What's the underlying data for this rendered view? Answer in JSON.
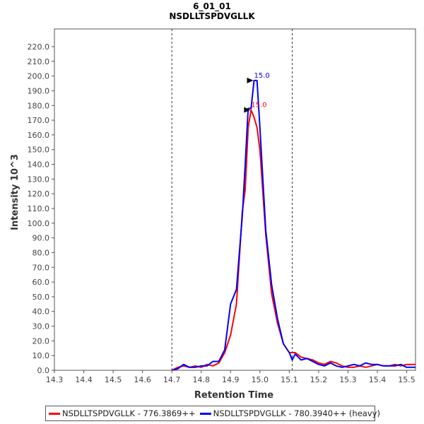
{
  "chart_data": {
    "type": "line",
    "title": "6_01_01",
    "subtitle": "NSDLLTSPDVGLLK",
    "xlabel": "Retention Time",
    "ylabel": "Intensity 10^3",
    "xlim": [
      14.3,
      15.53
    ],
    "ylim": [
      0,
      232
    ],
    "x_ticks": [
      "14.3",
      "14.4",
      "14.5",
      "14.6",
      "14.7",
      "14.8",
      "14.9",
      "15.0",
      "15.1",
      "15.2",
      "15.3",
      "15.4",
      "15.5"
    ],
    "y_ticks": [
      "0.0",
      "10.0",
      "20.0",
      "30.0",
      "40.0",
      "50.0",
      "60.0",
      "70.0",
      "80.0",
      "90.0",
      "100.0",
      "110.0",
      "120.0",
      "130.0",
      "140.0",
      "150.0",
      "160.0",
      "170.0",
      "180.0",
      "190.0",
      "200.0",
      "210.0",
      "220.0"
    ],
    "boundaries": [
      14.7,
      15.11
    ],
    "legend_position": "bottom",
    "series": [
      {
        "name": "NSDLLTSPDVGLLK - 776.3869++",
        "color": "#ff0000",
        "peak_label": "15.0",
        "peak_x": 14.97,
        "peak_y": 177,
        "x": [
          14.7,
          14.72,
          14.74,
          14.76,
          14.78,
          14.8,
          14.82,
          14.84,
          14.86,
          14.88,
          14.9,
          14.92,
          14.94,
          14.95,
          14.96,
          14.97,
          14.98,
          14.99,
          15.0,
          15.02,
          15.04,
          15.06,
          15.08,
          15.1,
          15.12,
          15.14,
          15.16,
          15.18,
          15.2,
          15.22,
          15.24,
          15.26,
          15.28,
          15.3,
          15.32,
          15.34,
          15.36,
          15.38,
          15.4,
          15.42,
          15.44,
          15.46,
          15.48,
          15.5,
          15.53
        ],
        "values": [
          0,
          2,
          3,
          2,
          3,
          2,
          4,
          3,
          5,
          12,
          24,
          45,
          108,
          123,
          165,
          177,
          172,
          165,
          150,
          92,
          52,
          32,
          18,
          12,
          12,
          9,
          8,
          7,
          5,
          4,
          6,
          5,
          3,
          2,
          2,
          3,
          2,
          3,
          4,
          3,
          3,
          4,
          3,
          4,
          4
        ]
      },
      {
        "name": "NSDLLTSPDVGLLK - 780.3940++ (heavy)",
        "color": "#0000ff",
        "peak_label": "15.0",
        "peak_x": 14.98,
        "peak_y": 197,
        "x": [
          14.7,
          14.72,
          14.74,
          14.76,
          14.78,
          14.8,
          14.82,
          14.84,
          14.86,
          14.88,
          14.9,
          14.92,
          14.94,
          14.95,
          14.96,
          14.97,
          14.98,
          14.99,
          15.0,
          15.02,
          15.04,
          15.06,
          15.08,
          15.1,
          15.11,
          15.12,
          15.14,
          15.16,
          15.18,
          15.2,
          15.22,
          15.24,
          15.26,
          15.28,
          15.3,
          15.32,
          15.34,
          15.36,
          15.38,
          15.4,
          15.42,
          15.44,
          15.46,
          15.48,
          15.5,
          15.53
        ],
        "values": [
          0,
          1,
          4,
          2,
          2,
          3,
          3,
          6,
          6,
          14,
          45,
          55,
          105,
          140,
          178,
          178,
          197,
          197,
          165,
          95,
          58,
          35,
          18,
          12,
          7,
          11,
          7,
          8,
          6,
          4,
          3,
          5,
          3,
          2,
          3,
          4,
          3,
          5,
          4,
          4,
          3,
          3,
          3,
          4,
          2,
          2
        ]
      }
    ]
  }
}
